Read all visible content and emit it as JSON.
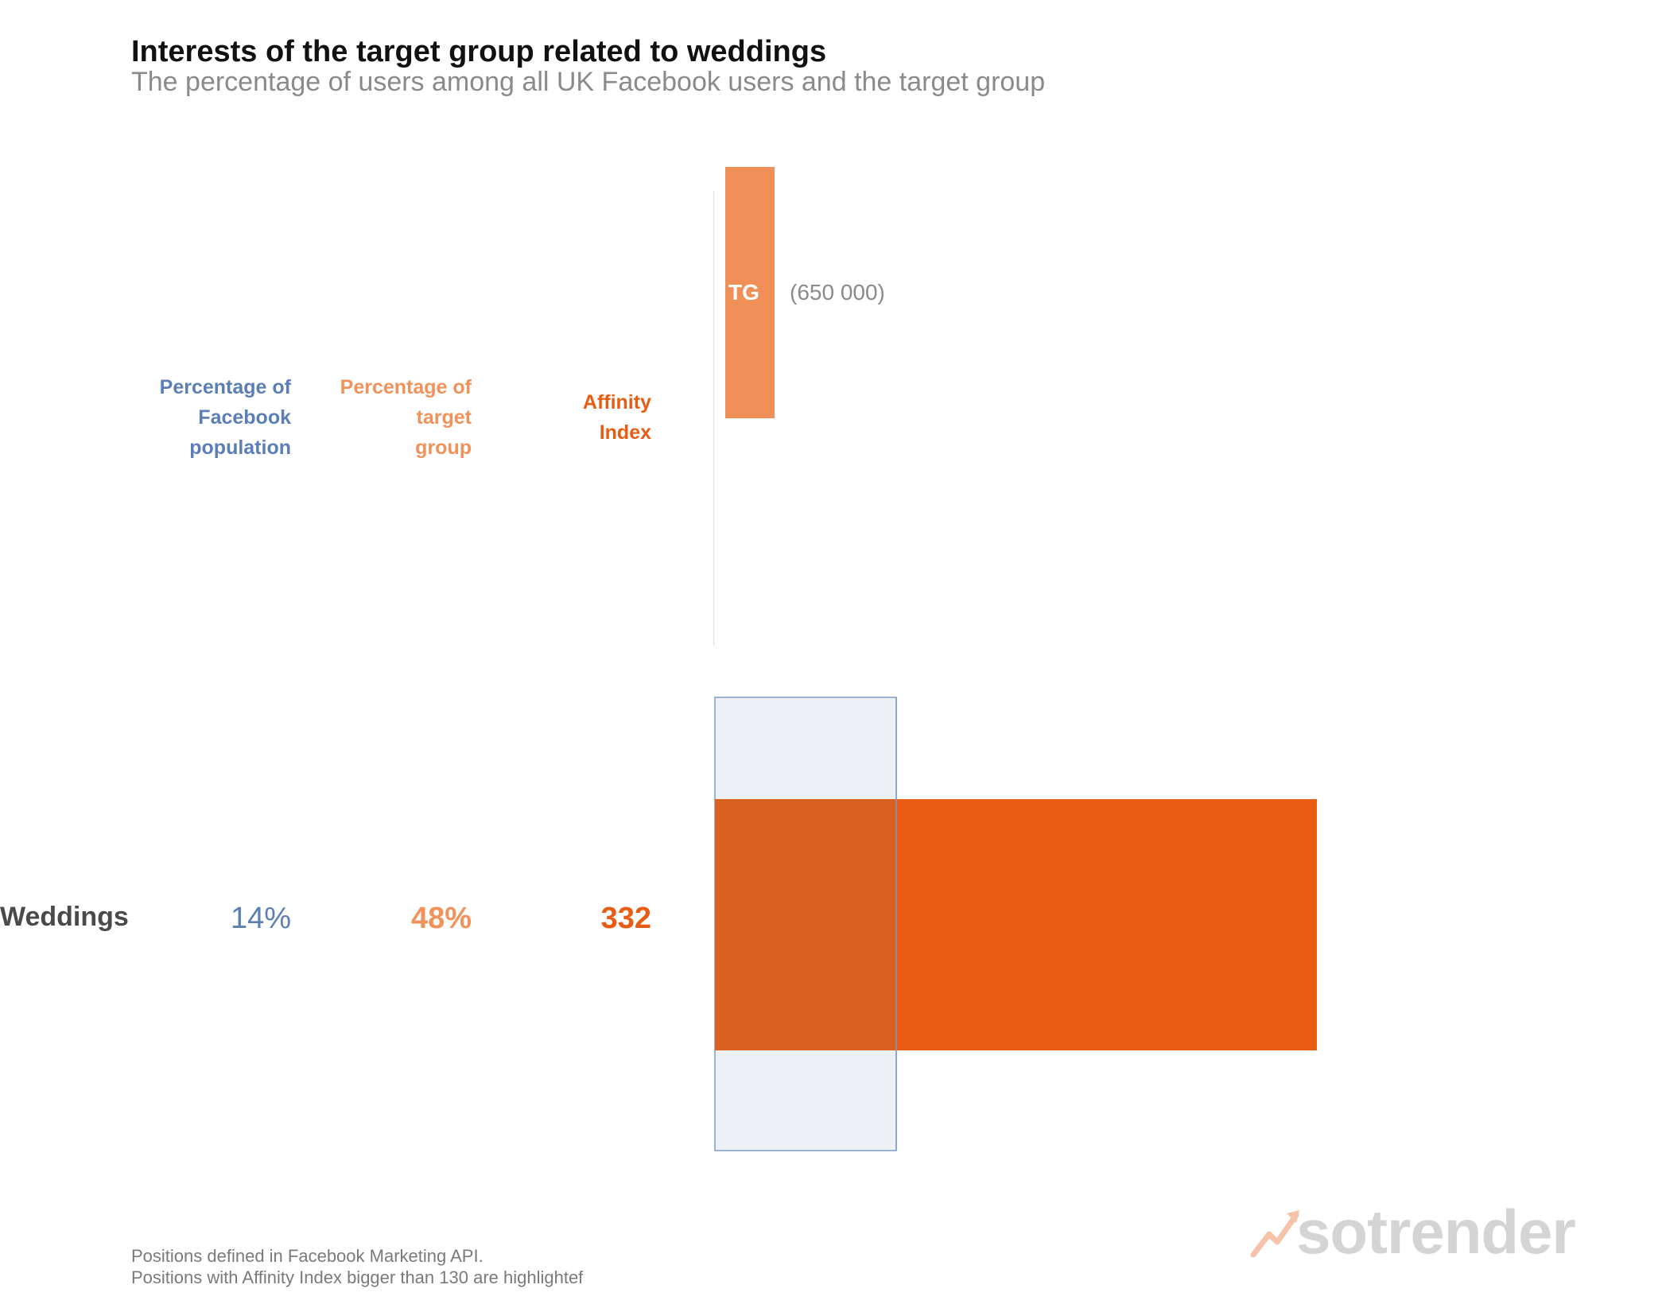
{
  "title": "Interests of the target group related to weddings",
  "subtitle": "The percentage of users among all UK Facebook users and the target group",
  "columns": {
    "fb": "Percentage of\nFacebook\npopulation",
    "tg": "Percentage of\ntarget\ngroup",
    "ai": "Affinity\nIndex"
  },
  "target_group": {
    "label": "TG",
    "count": "(650 000)"
  },
  "chart_data": {
    "type": "bar",
    "categories": [
      "Weddings"
    ],
    "series": [
      {
        "name": "Percentage of Facebook population",
        "values": [
          14
        ]
      },
      {
        "name": "Percentage of target group",
        "values": [
          48
        ]
      },
      {
        "name": "Affinity Index",
        "values": [
          332
        ]
      }
    ],
    "value_labels": {
      "fb": [
        "14%"
      ],
      "tg": [
        "48%"
      ],
      "ai": [
        "332"
      ]
    },
    "colors": {
      "fb": "#5b7fb5",
      "tg": "#f0925a",
      "ai": "#e85c13",
      "baseline_fill": "#edf1f6",
      "baseline_stroke": "#7f9cc7"
    }
  },
  "footnotes": [
    "Positions defined in Facebook Marketing API.",
    "Positions with Affinity Index bigger than 130 are highlightef"
  ],
  "logo": {
    "text": "sotrender",
    "icon": "trend-arrow-icon"
  }
}
